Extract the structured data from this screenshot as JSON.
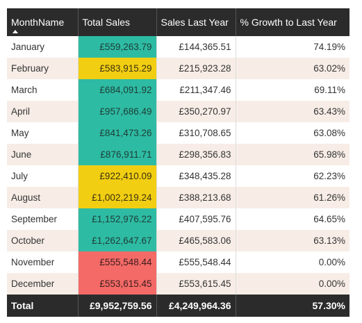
{
  "headers": {
    "month": "MonthName",
    "total_sales": "Total Sales",
    "sales_last_year": "Sales Last Year",
    "growth": "% Growth to Last Year"
  },
  "sort": {
    "column": "month",
    "direction": "ascending",
    "icon": "sort-up-icon"
  },
  "colors": {
    "header_bg": "#2b2b2b",
    "teal": "#2ebba3",
    "yellow": "#f2ce12",
    "red": "#f36a67",
    "band": "#f7ede6"
  },
  "rows": [
    {
      "month": "January",
      "total_sales": "£559,263.79",
      "sales_last_year": "£144,365.51",
      "growth": "74.19%",
      "color": "teal"
    },
    {
      "month": "February",
      "total_sales": "£583,915.29",
      "sales_last_year": "£215,923.28",
      "growth": "63.02%",
      "color": "yellow"
    },
    {
      "month": "March",
      "total_sales": "£684,091.92",
      "sales_last_year": "£211,347.46",
      "growth": "69.11%",
      "color": "teal"
    },
    {
      "month": "April",
      "total_sales": "£957,686.49",
      "sales_last_year": "£350,270.97",
      "growth": "63.43%",
      "color": "teal"
    },
    {
      "month": "May",
      "total_sales": "£841,473.26",
      "sales_last_year": "£310,708.65",
      "growth": "63.08%",
      "color": "teal"
    },
    {
      "month": "June",
      "total_sales": "£876,911.71",
      "sales_last_year": "£298,356.83",
      "growth": "65.98%",
      "color": "teal"
    },
    {
      "month": "July",
      "total_sales": "£922,410.09",
      "sales_last_year": "£348,435.28",
      "growth": "62.23%",
      "color": "yellow"
    },
    {
      "month": "August",
      "total_sales": "£1,002,219.24",
      "sales_last_year": "£388,213.68",
      "growth": "61.26%",
      "color": "yellow"
    },
    {
      "month": "September",
      "total_sales": "£1,152,976.22",
      "sales_last_year": "£407,595.76",
      "growth": "64.65%",
      "color": "teal"
    },
    {
      "month": "October",
      "total_sales": "£1,262,647.67",
      "sales_last_year": "£465,583.06",
      "growth": "63.13%",
      "color": "teal"
    },
    {
      "month": "November",
      "total_sales": "£555,548.44",
      "sales_last_year": "£555,548.44",
      "growth": "0.00%",
      "color": "red"
    },
    {
      "month": "December",
      "total_sales": "£553,615.45",
      "sales_last_year": "£553,615.45",
      "growth": "0.00%",
      "color": "red"
    }
  ],
  "total": {
    "label": "Total",
    "total_sales": "£9,952,759.56",
    "sales_last_year": "£4,249,964.36",
    "growth": "57.30%"
  }
}
